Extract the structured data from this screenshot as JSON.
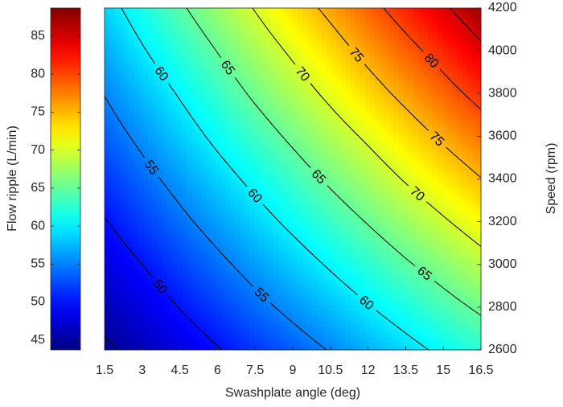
{
  "chart_data": {
    "type": "contour",
    "x_label": "Swashplate angle (deg)",
    "y_label": "Speed (rpm)",
    "colorbar_label": "Flow ripple (L/min)",
    "colormap": "jet",
    "contour_color": "#000000",
    "x": [
      1.5,
      3,
      4.5,
      6,
      7.5,
      9,
      10.5,
      12,
      13.5,
      15,
      16.5
    ],
    "y": [
      2600,
      2800,
      3000,
      3200,
      3400,
      3600,
      3800,
      4000,
      4200
    ],
    "z": [
      [
        44.4,
        46.2,
        48.0,
        49.8,
        51.6,
        53.4,
        55.2,
        57.1,
        58.9,
        60.7,
        62.5
      ],
      [
        46.2,
        48.1,
        50.1,
        52.0,
        54.0,
        55.9,
        57.8,
        59.8,
        61.7,
        63.7,
        65.6
      ],
      [
        48.0,
        50.0,
        52.1,
        54.2,
        56.3,
        58.3,
        60.4,
        62.5,
        64.6,
        66.6,
        68.7
      ],
      [
        49.8,
        52.0,
        54.2,
        56.4,
        58.6,
        60.8,
        63.0,
        65.2,
        67.4,
        69.6,
        71.8
      ],
      [
        51.6,
        53.9,
        56.2,
        58.6,
        60.9,
        63.2,
        65.6,
        67.9,
        70.3,
        72.6,
        74.9
      ],
      [
        53.4,
        55.8,
        58.3,
        60.8,
        63.2,
        65.7,
        68.2,
        70.6,
        73.1,
        75.6,
        78.0
      ],
      [
        55.1,
        57.7,
        60.3,
        62.9,
        65.6,
        68.2,
        70.8,
        73.4,
        76.0,
        78.6,
        81.2
      ],
      [
        56.9,
        59.7,
        62.4,
        65.1,
        67.9,
        70.6,
        73.3,
        76.1,
        78.8,
        81.5,
        84.3
      ],
      [
        58.7,
        61.6,
        64.5,
        67.3,
        70.2,
        73.1,
        75.9,
        78.8,
        81.7,
        84.5,
        87.4
      ]
    ],
    "xlim": [
      1.5,
      16.5
    ],
    "ylim": [
      2600,
      4200
    ],
    "xticks": [
      1.5,
      3,
      4.5,
      6,
      7.5,
      9,
      10.5,
      12,
      13.5,
      15,
      16.5
    ],
    "yticks": [
      2600,
      2800,
      3000,
      3200,
      3400,
      3600,
      3800,
      4000,
      4200
    ],
    "clim": [
      43.7,
      88.7
    ],
    "cticks": [
      45,
      50,
      55,
      60,
      65,
      70,
      75,
      80,
      85
    ],
    "contour_levels": [
      45,
      50,
      55,
      60,
      65,
      70,
      75,
      80,
      85
    ]
  }
}
